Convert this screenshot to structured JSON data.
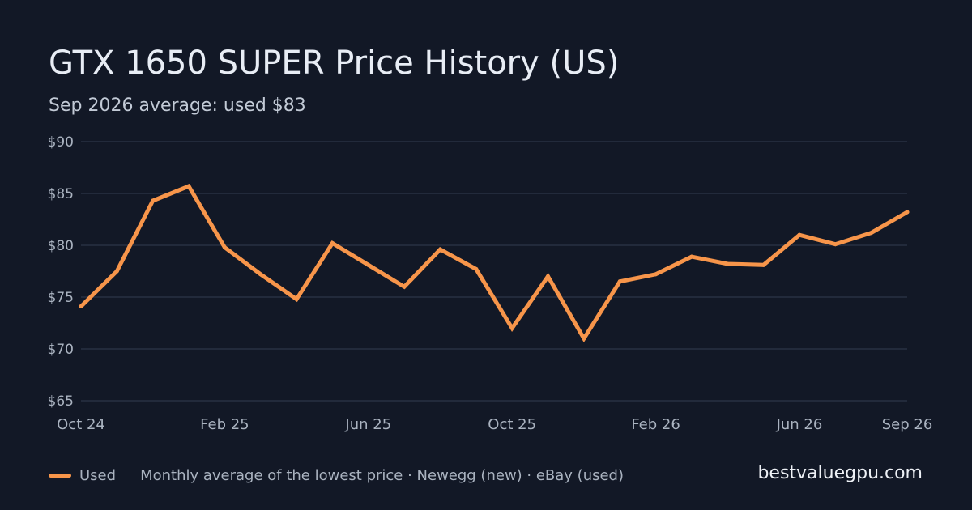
{
  "header": {
    "title": "GTX 1650 SUPER Price History (US)",
    "subtitle": "Sep 2026 average: used $83"
  },
  "legend": {
    "series_label": "Used",
    "note": "Monthly average of the lowest price · Newegg (new) · eBay (used)"
  },
  "brand": "bestvaluegpu.com",
  "colors": {
    "background": "#121826",
    "grid": "#283142",
    "axis_text": "#aab3c0",
    "used": "#f7954a"
  },
  "chart_data": {
    "type": "line",
    "title": "GTX 1650 SUPER Price History (US)",
    "subtitle": "Sep 2026 average: used $83",
    "x": [
      "Oct 24",
      "Nov 24",
      "Dec 24",
      "Jan 25",
      "Feb 25",
      "Mar 25",
      "Apr 25",
      "May 25",
      "Jun 25",
      "Jul 25",
      "Aug 25",
      "Sep 25",
      "Oct 25",
      "Nov 25",
      "Dec 25",
      "Jan 26",
      "Feb 26",
      "Mar 26",
      "Apr 26",
      "May 26",
      "Jun 26",
      "Jul 26",
      "Aug 26",
      "Sep 26"
    ],
    "x_tick_labels": [
      "Oct 24",
      "Feb 25",
      "Jun 25",
      "Oct 25",
      "Feb 26",
      "Jun 26",
      "Sep 26"
    ],
    "series": [
      {
        "name": "Used",
        "color": "#f7954a",
        "values": [
          74.1,
          77.5,
          84.3,
          85.7,
          79.8,
          77.2,
          74.8,
          80.2,
          78.1,
          76.0,
          79.6,
          77.7,
          72.0,
          77.0,
          71.0,
          76.5,
          77.2,
          78.9,
          78.2,
          78.1,
          81.0,
          80.1,
          81.2,
          83.2
        ]
      }
    ],
    "y_ticks": [
      65,
      70,
      75,
      80,
      85,
      90
    ],
    "y_tick_labels": [
      "$65",
      "$70",
      "$75",
      "$80",
      "$85",
      "$90"
    ],
    "ylim": [
      65,
      90
    ],
    "grid": true,
    "legend_position": "bottom-left"
  }
}
